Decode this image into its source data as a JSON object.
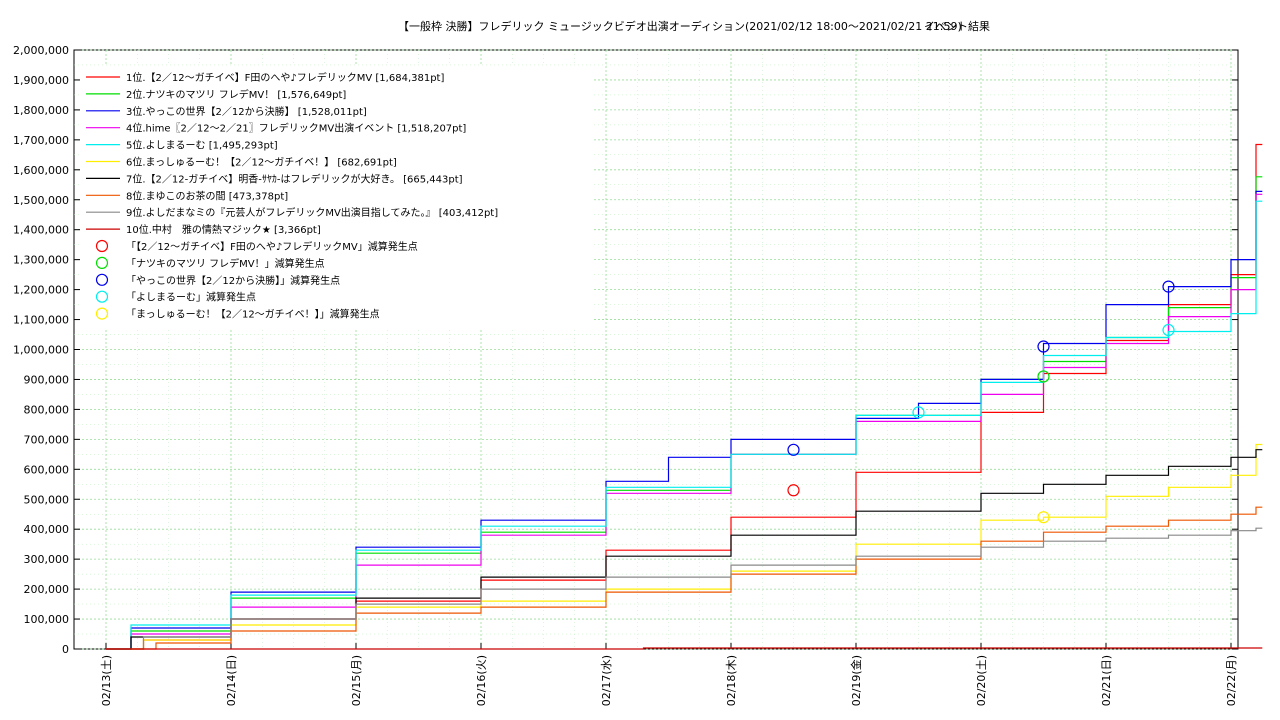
{
  "chart_data": {
    "type": "line",
    "title": "【一般枠 決勝】フレデリック ミュージックビデオ出演オーディション(2021/02/12 18:00〜2021/02/21 21:59)",
    "subtitle": "イベント結果",
    "xlabel": "",
    "ylabel": "",
    "ylim": [
      0,
      2000000
    ],
    "xlim": [
      0,
      9.25
    ],
    "grid": true,
    "legend_position": "top-left",
    "y_ticks": [
      "0",
      "100,000",
      "200,000",
      "300,000",
      "400,000",
      "500,000",
      "600,000",
      "700,000",
      "800,000",
      "900,000",
      "1,000,000",
      "1,100,000",
      "1,200,000",
      "1,300,000",
      "1,400,000",
      "1,500,000",
      "1,600,000",
      "1,700,000",
      "1,800,000",
      "1,900,000",
      "2,000,000"
    ],
    "x_ticks": [
      "02/13(土)",
      "02/14(日)",
      "02/15(月)",
      "02/16(火)",
      "02/17(水)",
      "02/18(木)",
      "02/19(金)",
      "02/20(土)",
      "02/21(日)",
      "02/22(月)"
    ],
    "series": [
      {
        "name": "1位.【2／12〜ガチイベ】F田のへや♪フレデリックMV [1,684,381pt]",
        "color": "#ff0000",
        "x": [
          0,
          0.3,
          1,
          2,
          3,
          4,
          5,
          6,
          7,
          7.5,
          8,
          8.5,
          9,
          9.2,
          9.2,
          9.25
        ],
        "y": [
          0,
          30000,
          100000,
          160000,
          230000,
          330000,
          440000,
          590000,
          790000,
          920000,
          1030000,
          1150000,
          1250000,
          1280000,
          1684381,
          1684381
        ]
      },
      {
        "name": "2位.ナツキのマツリ フレデMV！ [1,576,649pt]",
        "color": "#00dd00",
        "x": [
          0,
          0.2,
          1,
          2,
          3,
          4,
          5,
          6,
          7,
          7.5,
          8,
          8.5,
          9,
          9.2,
          9.25
        ],
        "y": [
          0,
          60000,
          170000,
          320000,
          390000,
          530000,
          650000,
          780000,
          900000,
          960000,
          1040000,
          1140000,
          1240000,
          1576649,
          1576649
        ]
      },
      {
        "name": "3位.やっこの世界【2／12から決勝】 [1,528,011pt]",
        "color": "#0000ee",
        "x": [
          0,
          0.2,
          1,
          2,
          3,
          4,
          4.5,
          5,
          6,
          6.5,
          7,
          7.5,
          8,
          8.5,
          9,
          9.2,
          9.25
        ],
        "y": [
          0,
          70000,
          190000,
          340000,
          430000,
          560000,
          640000,
          700000,
          770000,
          820000,
          900000,
          1020000,
          1150000,
          1210000,
          1300000,
          1528011,
          1528011
        ]
      },
      {
        "name": "4位.hime〖2／12〜2／21〗フレデリックMV出演イベント [1,518,207pt]",
        "color": "#ee00ee",
        "x": [
          0,
          0.2,
          1,
          2,
          3,
          4,
          5,
          6,
          7,
          7.5,
          8,
          8.5,
          9,
          9.2,
          9.25
        ],
        "y": [
          0,
          50000,
          140000,
          280000,
          380000,
          520000,
          650000,
          760000,
          850000,
          940000,
          1020000,
          1110000,
          1200000,
          1518207,
          1518207
        ]
      },
      {
        "name": "5位.よしまるーむ [1,495,293pt]",
        "color": "#00eeee",
        "x": [
          0,
          0.2,
          1,
          2,
          3,
          4,
          5,
          6,
          7,
          7.5,
          8,
          8.5,
          9,
          9.2,
          9.25
        ],
        "y": [
          0,
          80000,
          180000,
          330000,
          410000,
          540000,
          650000,
          780000,
          890000,
          980000,
          1040000,
          1060000,
          1120000,
          1495293,
          1495293
        ]
      },
      {
        "name": "6位.まっしゅるーむ！【2／12〜ガチイベ！】 [682,691pt]",
        "color": "#ffee00",
        "x": [
          0,
          0.3,
          1,
          2,
          3,
          4,
          5,
          6,
          7,
          7.5,
          8,
          8.5,
          9,
          9.2,
          9.25
        ],
        "y": [
          0,
          30000,
          80000,
          140000,
          160000,
          200000,
          260000,
          350000,
          430000,
          440000,
          510000,
          540000,
          580000,
          682691,
          682691
        ]
      },
      {
        "name": "7位.【2／12-ガチイベ】明香-ｻﾔｶ-はフレデリックが大好き。 [665,443pt]",
        "color": "#000000",
        "x": [
          0,
          0.2,
          1,
          2,
          3,
          4,
          5,
          6,
          7,
          7.5,
          8,
          8.5,
          9,
          9.2,
          9.25
        ],
        "y": [
          0,
          40000,
          100000,
          170000,
          240000,
          310000,
          380000,
          460000,
          520000,
          550000,
          580000,
          610000,
          640000,
          665443,
          665443
        ]
      },
      {
        "name": "8位.まゆこのお茶の間 [473,378pt]",
        "color": "#ee5500",
        "x": [
          0,
          0.4,
          1,
          2,
          3,
          4,
          5,
          6,
          7,
          7.5,
          8,
          8.5,
          9,
          9.2,
          9.25
        ],
        "y": [
          0,
          20000,
          60000,
          120000,
          140000,
          190000,
          250000,
          300000,
          360000,
          390000,
          410000,
          430000,
          450000,
          473378,
          473378
        ]
      },
      {
        "name": "9位.よしだまなミの『元芸人がフレデリックMV出演目指してみた。』 [403,412pt]",
        "color": "#888888",
        "x": [
          0,
          0.3,
          1,
          2,
          3,
          4,
          5,
          6,
          7,
          7.5,
          8,
          8.5,
          9,
          9.2,
          9.25
        ],
        "y": [
          0,
          40000,
          100000,
          150000,
          200000,
          240000,
          280000,
          310000,
          340000,
          360000,
          370000,
          380000,
          395000,
          403412,
          403412
        ]
      },
      {
        "name": "10位.中村　雅の情熱マジック★ [3,366pt]",
        "color": "#cc0000",
        "x": [
          0,
          4.3,
          9.25
        ],
        "y": [
          0,
          3366,
          3366
        ]
      }
    ],
    "markers": [
      {
        "name": "「【2／12〜ガチイベ】F田のへや♪フレデリックMV」減算発生点",
        "color": "#ff0000",
        "points": [
          {
            "x": 5.5,
            "y": 530000
          }
        ]
      },
      {
        "name": "「ナツキのマツリ フレデMV！」減算発生点",
        "color": "#00dd00",
        "points": [
          {
            "x": 7.5,
            "y": 910000
          }
        ]
      },
      {
        "name": "「やっこの世界【2／12から決勝】」減算発生点",
        "color": "#0000ee",
        "points": [
          {
            "x": 5.5,
            "y": 665000
          },
          {
            "x": 7.5,
            "y": 1010000
          },
          {
            "x": 8.5,
            "y": 1210000
          }
        ]
      },
      {
        "name": "「よしまるーむ」減算発生点",
        "color": "#00eeee",
        "points": [
          {
            "x": 6.5,
            "y": 790000
          },
          {
            "x": 8.5,
            "y": 1065000
          }
        ]
      },
      {
        "name": "「まっしゅるーむ！【2／12〜ガチイベ！】」減算発生点",
        "color": "#ffee00",
        "points": [
          {
            "x": 7.5,
            "y": 440000
          }
        ]
      }
    ]
  }
}
